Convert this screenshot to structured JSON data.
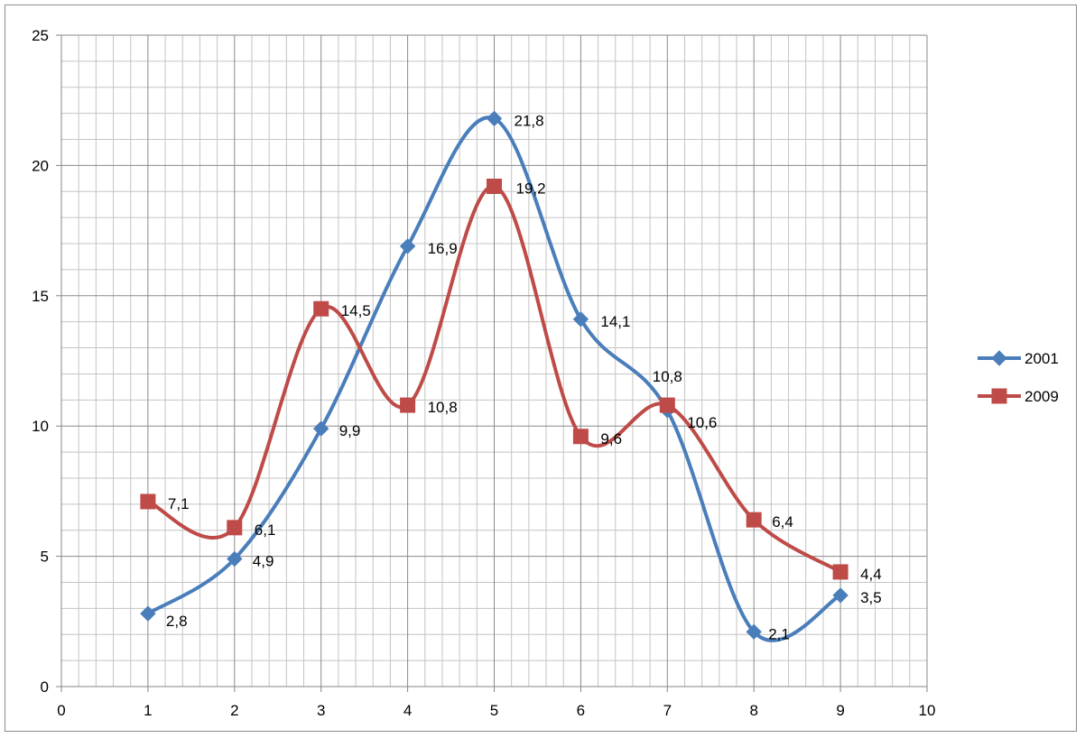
{
  "chart_data": {
    "type": "line",
    "smooth": true,
    "xlim": [
      0,
      10
    ],
    "ylim": [
      0,
      25
    ],
    "x_ticks": [
      0,
      1,
      2,
      3,
      4,
      5,
      6,
      7,
      8,
      9,
      10
    ],
    "y_ticks": [
      0,
      5,
      10,
      15,
      20,
      25
    ],
    "x_tick_labels": [
      "0",
      "1",
      "2",
      "3",
      "4",
      "5",
      "6",
      "7",
      "8",
      "9",
      "10"
    ],
    "y_tick_labels": [
      "0",
      "5",
      "10",
      "15",
      "20",
      "25"
    ],
    "grid": true,
    "minor_grid": true,
    "legend_position": "right",
    "series": [
      {
        "name": "2001",
        "color": "#4a7ebb",
        "marker": "diamond",
        "x": [
          1,
          2,
          3,
          4,
          5,
          6,
          7,
          8,
          9
        ],
        "values": [
          2.8,
          4.9,
          9.9,
          16.9,
          21.8,
          14.1,
          10.6,
          2.1,
          3.5
        ],
        "labels": [
          "2,8",
          "4,9",
          "9,9",
          "16,9",
          "21,8",
          "14,1",
          "10,6",
          "2,1",
          "3,5"
        ]
      },
      {
        "name": "2009",
        "color": "#be4b48",
        "marker": "square",
        "x": [
          1,
          2,
          3,
          4,
          5,
          6,
          7,
          8,
          9
        ],
        "values": [
          7.1,
          6.1,
          14.5,
          10.8,
          19.2,
          9.6,
          10.8,
          6.4,
          4.4
        ],
        "labels": [
          "7,1",
          "6,1",
          "14,5",
          "10,8",
          "19,2",
          "9,6",
          "10,8",
          "6,4",
          "4,4"
        ]
      }
    ]
  }
}
